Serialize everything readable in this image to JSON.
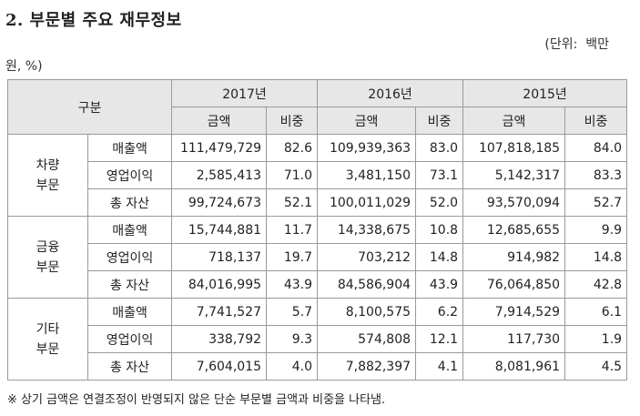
{
  "title": "2. 부문별 주요 재무정보",
  "unit_part1": "(단위:  백만",
  "unit_part2": "원, %)",
  "header": {
    "category": "구분",
    "years": [
      "2017년",
      "2016년",
      "2015년"
    ],
    "amount_label": "금액",
    "ratio_label": "비중"
  },
  "segments": [
    {
      "name_line1": "차량",
      "name_line2": "부문",
      "rows": [
        {
          "label": "매출액",
          "values": [
            "111,479,729",
            "82.6",
            "109,939,363",
            "83.0",
            "107,818,185",
            "84.0"
          ]
        },
        {
          "label": "영업이익",
          "values": [
            "2,585,413",
            "71.0",
            "3,481,150",
            "73.1",
            "5,142,317",
            "83.3"
          ]
        },
        {
          "label": "총 자산",
          "values": [
            "99,724,673",
            "52.1",
            "100,011,029",
            "52.0",
            "93,570,094",
            "52.7"
          ]
        }
      ]
    },
    {
      "name_line1": "금융",
      "name_line2": "부문",
      "rows": [
        {
          "label": "매출액",
          "values": [
            "15,744,881",
            "11.7",
            "14,338,675",
            "10.8",
            "12,685,655",
            "9.9"
          ]
        },
        {
          "label": "영업이익",
          "values": [
            "718,137",
            "19.7",
            "703,212",
            "14.8",
            "914,982",
            "14.8"
          ]
        },
        {
          "label": "총 자산",
          "values": [
            "84,016,995",
            "43.9",
            "84,586,904",
            "43.9",
            "76,064,850",
            "42.8"
          ]
        }
      ]
    },
    {
      "name_line1": "기타",
      "name_line2": "부문",
      "rows": [
        {
          "label": "매출액",
          "values": [
            "7,741,527",
            "5.7",
            "8,100,575",
            "6.2",
            "7,914,529",
            "6.1"
          ]
        },
        {
          "label": "영업이익",
          "values": [
            "338,792",
            "9.3",
            "574,808",
            "12.1",
            "117,730",
            "1.9"
          ]
        },
        {
          "label": "총 자산",
          "values": [
            "7,604,015",
            "4.0",
            "7,882,397",
            "4.1",
            "8,081,961",
            "4.5"
          ]
        }
      ]
    }
  ],
  "footnote": "※ 상기 금액은 연결조정이 반영되지 않은 단순 부문별 금액과 비중을 나타냄."
}
